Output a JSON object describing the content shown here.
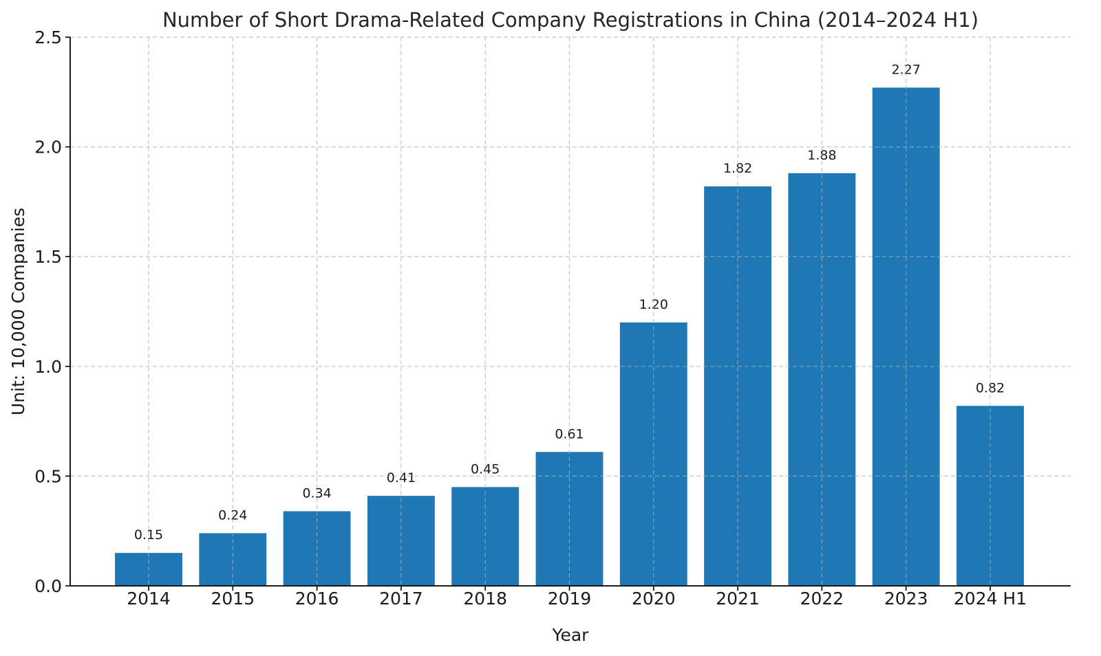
{
  "chart_data": {
    "type": "bar",
    "title": "Number of Short Drama-Related Company Registrations in China (2014–2024 H1)",
    "xlabel": "Year",
    "ylabel": "Unit: 10,000 Companies",
    "categories": [
      "2014",
      "2015",
      "2016",
      "2017",
      "2018",
      "2019",
      "2020",
      "2021",
      "2022",
      "2023",
      "2024 H1"
    ],
    "values": [
      0.15,
      0.24,
      0.34,
      0.41,
      0.45,
      0.61,
      1.2,
      1.82,
      1.88,
      2.27,
      0.82
    ],
    "value_labels": [
      "0.15",
      "0.24",
      "0.34",
      "0.41",
      "0.45",
      "0.61",
      "1.20",
      "1.82",
      "1.88",
      "2.27",
      "0.82"
    ],
    "ylim": [
      0,
      2.5
    ],
    "yticks": [
      "0.0",
      "0.5",
      "1.0",
      "1.5",
      "2.0",
      "2.5"
    ],
    "grid": true,
    "legend": "none",
    "colors": {
      "bar": "#1f77b4"
    }
  }
}
